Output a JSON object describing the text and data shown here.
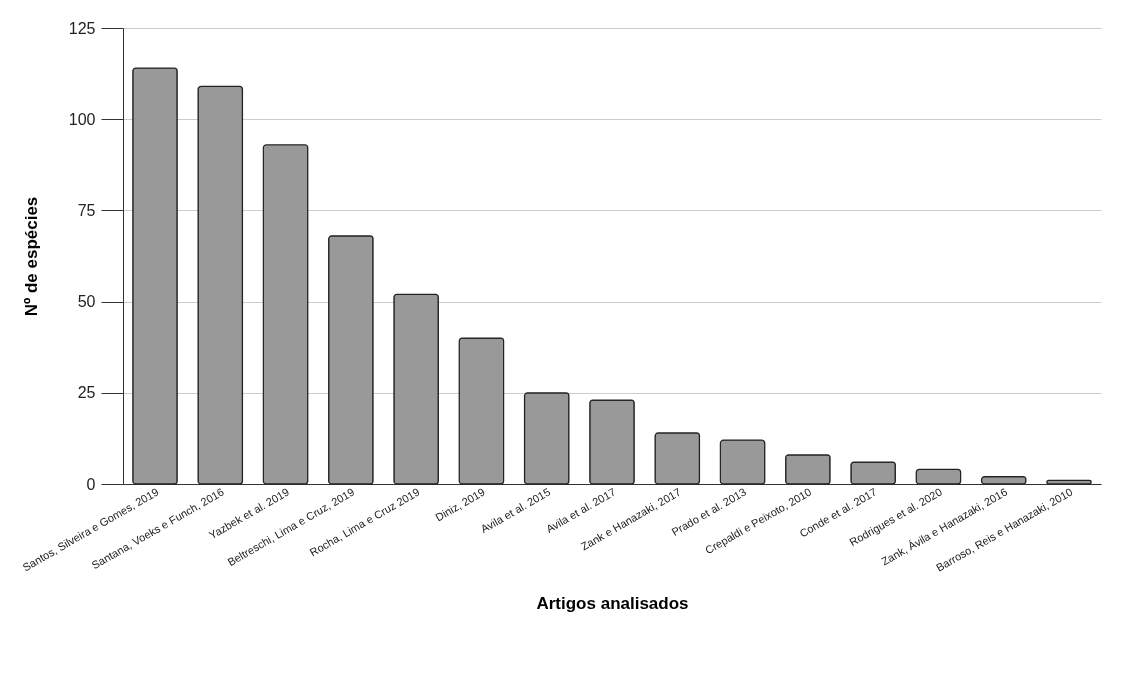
{
  "chart_data": {
    "type": "bar",
    "xlabel": "Artigos analisados",
    "ylabel": "Nº de espécies",
    "categories": [
      "Santos, Silveira e Gomes, 2019",
      "Santana, Voeks e Funch, 2016",
      "Yazbek et al. 2019",
      "Beltreschi, Lima e Cruz, 2019",
      "Rocha, Lima e Cruz 2019",
      "Diniz, 2019",
      "Avila et al. 2015",
      "Avila et al. 2017",
      "Zank e Hanazaki, 2017",
      "Prado et al. 2013",
      "Crepaldi e Peixoto, 2010",
      "Conde et al. 2017",
      "Rodrigues et al. 2020",
      "Zank, Ávila e Hanazaki, 2016",
      "Barroso, Reis e Hanazaki, 2010"
    ],
    "values": [
      114,
      109,
      93,
      68,
      52,
      40,
      25,
      23,
      14,
      12,
      8,
      6,
      4,
      2,
      1
    ],
    "color": "#999999",
    "ylim": [
      0,
      125
    ],
    "yticks": [
      0,
      25,
      50,
      75,
      100,
      125
    ],
    "grid": "y"
  }
}
